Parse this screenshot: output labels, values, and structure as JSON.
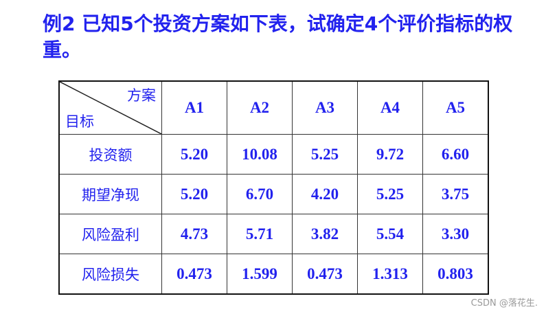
{
  "title": "例2 已知5个投资方案如下表，试确定4个评价指标的权重。",
  "table": {
    "corner_top": "方案",
    "corner_bottom": "目标",
    "columns": [
      "A1",
      "A2",
      "A3",
      "A4",
      "A5"
    ],
    "rows": [
      {
        "label": "投资额",
        "values": [
          "5.20",
          "10.08",
          "5.25",
          "9.72",
          "6.60"
        ]
      },
      {
        "label": "期望净现",
        "values": [
          "5.20",
          "6.70",
          "4.20",
          "5.25",
          "3.75"
        ]
      },
      {
        "label": "风险盈利",
        "values": [
          "4.73",
          "5.71",
          "3.82",
          "5.54",
          "3.30"
        ]
      },
      {
        "label": "风险损失",
        "values": [
          "0.473",
          "1.599",
          "0.473",
          "1.313",
          "0.803"
        ]
      }
    ]
  },
  "watermark": "CSDN @落花生.",
  "colors": {
    "text": "#2222ee"
  }
}
